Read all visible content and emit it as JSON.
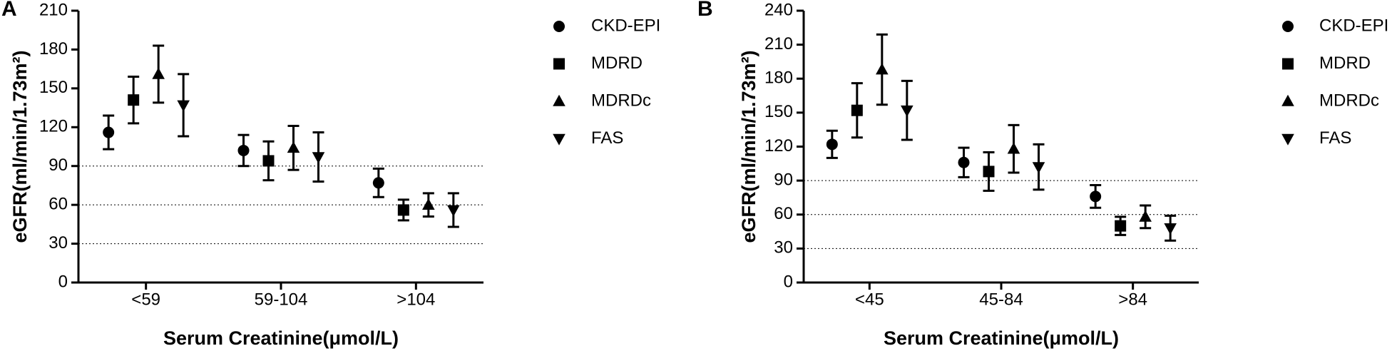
{
  "chart_data": [
    {
      "type": "errorbar",
      "panel": "A",
      "x_label": "Serum Creatinine(μmol/L)",
      "y_label": "eGFR(ml/min/1.73m²)",
      "categories": [
        "<59",
        "59-104",
        ">104"
      ],
      "ylim": [
        0,
        210
      ],
      "yticks": [
        0,
        30,
        60,
        90,
        120,
        150,
        180,
        210
      ],
      "reference_lines": [
        30,
        60,
        90
      ],
      "series": [
        {
          "name": "CKD-EPI",
          "marker": "circle",
          "color": "#000000",
          "values": [
            116,
            102,
            77
          ],
          "errors": [
            13,
            12,
            11
          ]
        },
        {
          "name": "MDRD",
          "marker": "square",
          "color": "#000000",
          "values": [
            141,
            94,
            56
          ],
          "errors": [
            18,
            15,
            8
          ]
        },
        {
          "name": "MDRDc",
          "marker": "triangle",
          "color": "#000000",
          "values": [
            161,
            104,
            60
          ],
          "errors": [
            22,
            17,
            9
          ]
        },
        {
          "name": "FAS",
          "marker": "triangle-down",
          "color": "#000000",
          "values": [
            137,
            97,
            56
          ],
          "errors": [
            24,
            19,
            13
          ]
        }
      ]
    },
    {
      "type": "errorbar",
      "panel": "B",
      "x_label": "Serum Creatinine(μmol/L)",
      "y_label": "eGFR(ml/min/1.73m²)",
      "categories": [
        "<45",
        "45-84",
        ">84"
      ],
      "ylim": [
        0,
        240
      ],
      "yticks": [
        0,
        30,
        60,
        90,
        120,
        150,
        180,
        210,
        240
      ],
      "reference_lines": [
        30,
        60,
        90
      ],
      "series": [
        {
          "name": "CKD-EPI",
          "marker": "circle",
          "color": "#000000",
          "values": [
            122,
            106,
            76
          ],
          "errors": [
            12,
            13,
            10
          ]
        },
        {
          "name": "MDRD",
          "marker": "square",
          "color": "#000000",
          "values": [
            152,
            98,
            50
          ],
          "errors": [
            24,
            17,
            8
          ]
        },
        {
          "name": "MDRDc",
          "marker": "triangle",
          "color": "#000000",
          "values": [
            188,
            118,
            58
          ],
          "errors": [
            31,
            21,
            10
          ]
        },
        {
          "name": "FAS",
          "marker": "triangle-down",
          "color": "#000000",
          "values": [
            152,
            102,
            48
          ],
          "errors": [
            26,
            20,
            11
          ]
        }
      ]
    }
  ]
}
